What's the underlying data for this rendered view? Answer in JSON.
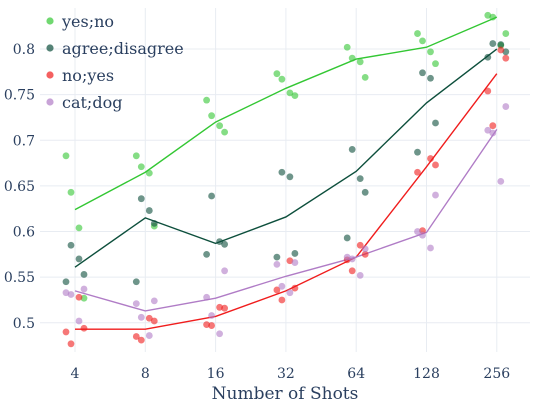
{
  "chart_data": {
    "type": "line",
    "title": "",
    "xlabel": "Number of Shots",
    "ylabel": "",
    "x_categories": [
      "4",
      "8",
      "16",
      "32",
      "64",
      "128",
      "256"
    ],
    "yticks": [
      "0.5",
      "0.55",
      "0.6",
      "0.65",
      "0.7",
      "0.75",
      "0.8"
    ],
    "ylim": [
      0.468,
      0.845
    ],
    "grid": true,
    "legend_position": "top-left",
    "series": [
      {
        "name": "yes;no",
        "color": "#33c733",
        "line_values": [
          0.624,
          0.665,
          0.72,
          0.757,
          0.789,
          0.802,
          0.835
        ],
        "points": [
          [
            [
              0.683,
              0.643,
              0.604,
              0.527
            ]
          ],
          [
            [
              0.683,
              0.671,
              0.664,
              0.606
            ]
          ],
          [
            [
              0.744,
              0.727,
              0.716,
              0.709
            ]
          ],
          [
            [
              0.773,
              0.767,
              0.752,
              0.749
            ]
          ],
          [
            [
              0.802,
              0.79,
              0.786,
              0.769
            ]
          ],
          [
            [
              0.817,
              0.809,
              0.797,
              0.784
            ]
          ],
          [
            [
              0.837,
              0.835,
              0.804,
              0.817
            ]
          ]
        ]
      },
      {
        "name": "agree;disagree",
        "color": "#0d4f3c",
        "line_values": [
          0.561,
          0.615,
          0.587,
          0.616,
          0.666,
          0.741,
          0.8
        ],
        "points": [
          [
            [
              0.585,
              0.57,
              0.553,
              0.545
            ]
          ],
          [
            [
              0.636,
              0.623,
              0.609,
              0.545
            ]
          ],
          [
            [
              0.639,
              0.589,
              0.586,
              0.575
            ]
          ],
          [
            [
              0.665,
              0.66,
              0.576,
              0.572
            ]
          ],
          [
            [
              0.69,
              0.658,
              0.643,
              0.593
            ]
          ],
          [
            [
              0.774,
              0.768,
              0.719,
              0.687
            ]
          ],
          [
            [
              0.806,
              0.805,
              0.797,
              0.791
            ]
          ]
        ]
      },
      {
        "name": "no;yes",
        "color": "#f01d1d",
        "line_values": [
          0.493,
          0.493,
          0.507,
          0.535,
          0.572,
          0.671,
          0.773
        ],
        "points": [
          [
            [
              0.528,
              0.494,
              0.49,
              0.477
            ]
          ],
          [
            [
              0.505,
              0.502,
              0.485,
              0.481
            ]
          ],
          [
            [
              0.517,
              0.516,
              0.498,
              0.497
            ]
          ],
          [
            [
              0.568,
              0.538,
              0.536,
              0.525
            ]
          ],
          [
            [
              0.585,
              0.575,
              0.569,
              0.557
            ]
          ],
          [
            [
              0.68,
              0.673,
              0.665,
              0.601
            ]
          ],
          [
            [
              0.799,
              0.79,
              0.754,
              0.716
            ]
          ]
        ]
      },
      {
        "name": "cat;dog",
        "color": "#b07cc6",
        "line_values": [
          0.535,
          0.513,
          0.527,
          0.551,
          0.572,
          0.599,
          0.712
        ],
        "points": [
          [
            [
              0.537,
              0.533,
              0.531,
              0.502
            ]
          ],
          [
            [
              0.524,
              0.521,
              0.506,
              0.486
            ]
          ],
          [
            [
              0.557,
              0.528,
              0.508,
              0.488
            ]
          ],
          [
            [
              0.566,
              0.564,
              0.54,
              0.533
            ]
          ],
          [
            [
              0.581,
              0.572,
              0.57,
              0.552
            ]
          ],
          [
            [
              0.64,
              0.6,
              0.596,
              0.582
            ]
          ],
          [
            [
              0.737,
              0.711,
              0.708,
              0.655
            ]
          ]
        ]
      }
    ]
  }
}
